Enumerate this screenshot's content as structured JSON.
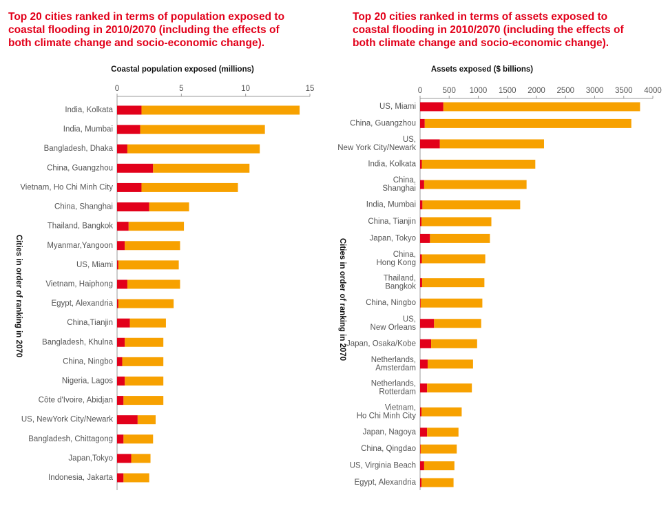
{
  "chart_data": [
    {
      "type": "bar",
      "orientation": "horizontal",
      "stacked": true,
      "title": [
        "Top 20 cities ranked in terms of population exposed to",
        "coastal flooding in 2010/2070 (including the effects of",
        "both climate change and socio-economic change)."
      ],
      "x_label": "Coastal population exposed (millions)",
      "y_label": "Cities in order of ranking in 2070",
      "categories": [
        [
          "India, Kolkata"
        ],
        [
          "India, Mumbai"
        ],
        [
          "Bangladesh, Dhaka"
        ],
        [
          "China, Guangzhou"
        ],
        [
          "Vietnam, Ho Chi Minh City"
        ],
        [
          "China, Shanghai"
        ],
        [
          "Thailand, Bangkok"
        ],
        [
          "Myanmar,Yangoon"
        ],
        [
          "US, Miami"
        ],
        [
          "Vietnam, Haiphong"
        ],
        [
          "Egypt, Alexandria"
        ],
        [
          "China,Tianjin"
        ],
        [
          "Bangladesh, Khulna"
        ],
        [
          "China, Ningbo"
        ],
        [
          "Nigeria, Lagos"
        ],
        [
          "Côte d'Ivoire, Abidjan"
        ],
        [
          "US, NewYork City/Newark"
        ],
        [
          "Bangladesh, Chittagong"
        ],
        [
          "Japan,Tokyo"
        ],
        [
          "Indonesia, Jakarta"
        ]
      ],
      "series": [
        {
          "color": "#e2001a",
          "values": [
            1.9,
            1.8,
            0.8,
            2.8,
            1.9,
            2.5,
            0.9,
            0.6,
            0.1,
            0.8,
            0.1,
            1.0,
            0.6,
            0.4,
            0.6,
            0.5,
            1.6,
            0.5,
            1.1,
            0.5
          ]
        },
        {
          "color": "#f7a100",
          "values": [
            12.3,
            9.7,
            10.3,
            7.5,
            7.5,
            3.1,
            4.3,
            4.3,
            4.7,
            4.1,
            4.3,
            2.8,
            3.0,
            3.2,
            3.0,
            3.1,
            1.4,
            2.3,
            1.5,
            2.0
          ]
        }
      ],
      "xlim": [
        0,
        15
      ],
      "xticks": [
        0,
        5,
        10,
        15
      ]
    },
    {
      "type": "bar",
      "orientation": "horizontal",
      "stacked": true,
      "title": [
        "Top 20 cities ranked in terms of assets exposed to",
        "coastal flooding in 2010/2070 (including the effects of",
        "both climate change and socio-economic change)."
      ],
      "x_label": "Assets exposed ($ billions)",
      "y_label": "Cities in order of ranking in 2070",
      "categories": [
        [
          "US, Miami"
        ],
        [
          "China, Guangzhou"
        ],
        [
          "US,",
          "New York City/Newark"
        ],
        [
          "India, Kolkata"
        ],
        [
          "China,",
          "Shanghai"
        ],
        [
          "India, Mumbai"
        ],
        [
          "China, Tianjin"
        ],
        [
          "Japan, Tokyo"
        ],
        [
          "China,",
          "Hong Kong"
        ],
        [
          "Thailand,",
          "Bangkok"
        ],
        [
          "China, Ningbo"
        ],
        [
          "US,",
          "New Orleans"
        ],
        [
          "Japan, Osaka/Kobe"
        ],
        [
          "Netherlands,",
          "Amsterdam"
        ],
        [
          "Netherlands,",
          "Rotterdam"
        ],
        [
          "Vietnam,",
          "Ho Chi Minh City"
        ],
        [
          "Japan, Nagoya"
        ],
        [
          "China, Qingdao"
        ],
        [
          "US, Virginia Beach"
        ],
        [
          "Egypt, Alexandria"
        ]
      ],
      "series": [
        {
          "color": "#e2001a",
          "values": [
            400,
            80,
            340,
            30,
            70,
            40,
            25,
            170,
            30,
            35,
            10,
            240,
            190,
            130,
            120,
            25,
            120,
            10,
            70,
            25
          ]
        },
        {
          "color": "#f7a100",
          "values": [
            3380,
            3550,
            1790,
            1950,
            1760,
            1680,
            1200,
            1030,
            1090,
            1070,
            1060,
            810,
            790,
            780,
            770,
            690,
            540,
            620,
            520,
            550
          ]
        }
      ],
      "xlim": [
        0,
        4000
      ],
      "xticks": [
        0,
        500,
        1000,
        1500,
        2000,
        2500,
        3000,
        3500,
        4000
      ]
    }
  ]
}
